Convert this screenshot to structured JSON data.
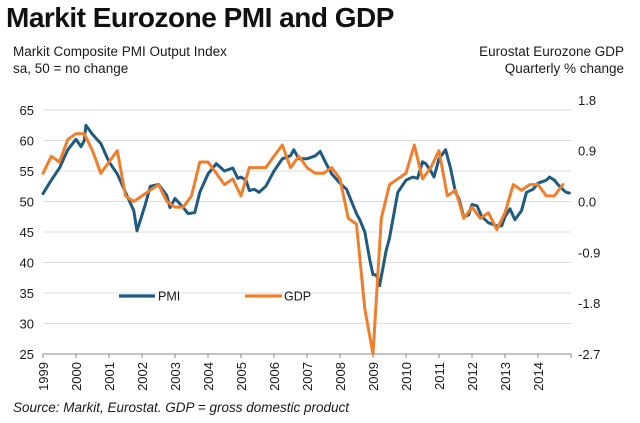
{
  "title": "Markit Eurozone PMI and GDP",
  "left_subtitle": [
    "Markit Composite PMI Output Index",
    "sa, 50 = no change"
  ],
  "right_subtitle": [
    "Eurostat Eurozone GDP",
    "Quarterly % change"
  ],
  "source": "Source: Markit, Eurostat. GDP = gross domestic product",
  "colors": {
    "pmi": "#1f5a80",
    "gdp": "#f07f2b",
    "grid": "#dddddd",
    "axis": "#888888"
  },
  "chart_data": {
    "type": "line",
    "title": "Markit Eurozone PMI and GDP",
    "xlabel": "",
    "ylabel_left": "Markit Composite PMI Output Index, sa, 50 = no change",
    "ylabel_right": "Eurostat Eurozone GDP, Quarterly % change",
    "xlim": [
      1999,
      2015
    ],
    "ylim_left": [
      25,
      65
    ],
    "ylim_right": [
      -2.7,
      1.62
    ],
    "grid": true,
    "legend_position": "lower-left",
    "x_ticks": [
      "1999",
      "2000",
      "2001",
      "2002",
      "2003",
      "2004",
      "2005",
      "2006",
      "2007",
      "2008",
      "2009",
      "2010",
      "2011",
      "2012",
      "2013",
      "2014"
    ],
    "y_ticks_left": [
      "65",
      "60",
      "55",
      "50",
      "45",
      "40",
      "35",
      "30",
      "25"
    ],
    "y_ticks_right": [
      "1.8",
      "0.9",
      "0.0",
      "-0.9",
      "-1.8",
      "-2.7"
    ],
    "series": [
      {
        "name": "PMI",
        "axis": "left",
        "x": [
          1999.0,
          1999.25,
          1999.5,
          1999.75,
          2000.0,
          2000.15,
          2000.25,
          2000.3,
          2000.5,
          2000.75,
          2001.0,
          2001.25,
          2001.5,
          2001.75,
          2001.85,
          2002.1,
          2002.25,
          2002.5,
          2002.75,
          2002.85,
          2003.0,
          2003.25,
          2003.4,
          2003.6,
          2003.75,
          2004.0,
          2004.25,
          2004.5,
          2004.75,
          2004.9,
          2005.0,
          2005.15,
          2005.25,
          2005.4,
          2005.55,
          2005.75,
          2006.0,
          2006.25,
          2006.5,
          2006.6,
          2006.75,
          2007.0,
          2007.25,
          2007.4,
          2007.6,
          2007.75,
          2008.0,
          2008.2,
          2008.35,
          2008.5,
          2008.6,
          2008.75,
          2008.9,
          2009.0,
          2009.1,
          2009.2,
          2009.4,
          2009.5,
          2009.75,
          2010.0,
          2010.2,
          2010.35,
          2010.5,
          2010.6,
          2010.75,
          2010.85,
          2011.0,
          2011.2,
          2011.35,
          2011.5,
          2011.6,
          2011.75,
          2011.9,
          2012.0,
          2012.15,
          2012.3,
          2012.5,
          2012.75,
          2012.9,
          2013.0,
          2013.15,
          2013.3,
          2013.5,
          2013.65,
          2013.85,
          2014.0,
          2014.25,
          2014.35,
          2014.5,
          2014.6,
          2014.75,
          2014.85,
          2014.95
        ],
        "values": [
          51.3,
          53.5,
          55.5,
          58.5,
          60.2,
          59.0,
          60.0,
          62.5,
          61.0,
          59.5,
          56.5,
          54.5,
          51.5,
          48.5,
          45.2,
          49.5,
          52.5,
          52.8,
          51.0,
          49.0,
          50.5,
          49.0,
          48.0,
          48.2,
          51.5,
          54.5,
          56.2,
          55.0,
          55.5,
          53.8,
          54.0,
          53.5,
          51.8,
          52.0,
          51.5,
          52.5,
          55.0,
          57.0,
          57.5,
          58.5,
          57.0,
          57.0,
          57.5,
          58.2,
          56.0,
          54.5,
          53.0,
          52.0,
          50.0,
          48.0,
          47.0,
          45.0,
          40.5,
          38.0,
          38.0,
          36.2,
          42.0,
          44.0,
          51.5,
          53.5,
          54.0,
          53.8,
          56.5,
          56.2,
          55.0,
          54.0,
          57.0,
          58.5,
          55.5,
          51.5,
          50.5,
          47.5,
          47.8,
          49.5,
          49.3,
          47.5,
          46.5,
          46.0,
          46.0,
          47.5,
          48.8,
          47.0,
          48.5,
          51.5,
          52.0,
          53.0,
          53.5,
          54.0,
          53.5,
          52.8,
          52.0,
          51.5,
          51.4
        ]
      },
      {
        "name": "GDP",
        "axis": "right",
        "x": [
          1999.0,
          1999.25,
          1999.5,
          1999.75,
          2000.0,
          2000.25,
          2000.5,
          2000.75,
          2001.0,
          2001.25,
          2001.5,
          2001.75,
          2002.0,
          2002.25,
          2002.5,
          2002.75,
          2003.0,
          2003.25,
          2003.5,
          2003.75,
          2004.0,
          2004.25,
          2004.5,
          2004.75,
          2005.0,
          2005.25,
          2005.5,
          2005.75,
          2006.0,
          2006.25,
          2006.5,
          2006.75,
          2007.0,
          2007.25,
          2007.5,
          2007.75,
          2008.0,
          2008.25,
          2008.5,
          2008.75,
          2009.0,
          2009.25,
          2009.5,
          2009.75,
          2010.0,
          2010.25,
          2010.5,
          2010.75,
          2011.0,
          2011.25,
          2011.5,
          2011.75,
          2012.0,
          2012.25,
          2012.5,
          2012.75,
          2013.0,
          2013.25,
          2013.5,
          2013.75,
          2014.0,
          2014.25,
          2014.5,
          2014.75
        ],
        "values": [
          0.5,
          0.8,
          0.7,
          1.1,
          1.2,
          1.2,
          0.9,
          0.5,
          0.7,
          0.9,
          0.1,
          0.0,
          0.1,
          0.2,
          0.3,
          0.0,
          -0.1,
          -0.1,
          0.1,
          0.7,
          0.7,
          0.5,
          0.3,
          0.4,
          0.1,
          0.6,
          0.6,
          0.6,
          0.8,
          1.0,
          0.6,
          0.8,
          0.6,
          0.5,
          0.5,
          0.6,
          0.4,
          -0.3,
          -0.4,
          -1.9,
          -2.8,
          -0.3,
          0.3,
          0.4,
          0.5,
          1.0,
          0.4,
          0.6,
          0.9,
          0.1,
          0.2,
          -0.3,
          -0.1,
          -0.3,
          -0.2,
          -0.5,
          -0.2,
          0.3,
          0.2,
          0.3,
          0.3,
          0.1,
          0.1,
          0.3
        ]
      }
    ]
  }
}
